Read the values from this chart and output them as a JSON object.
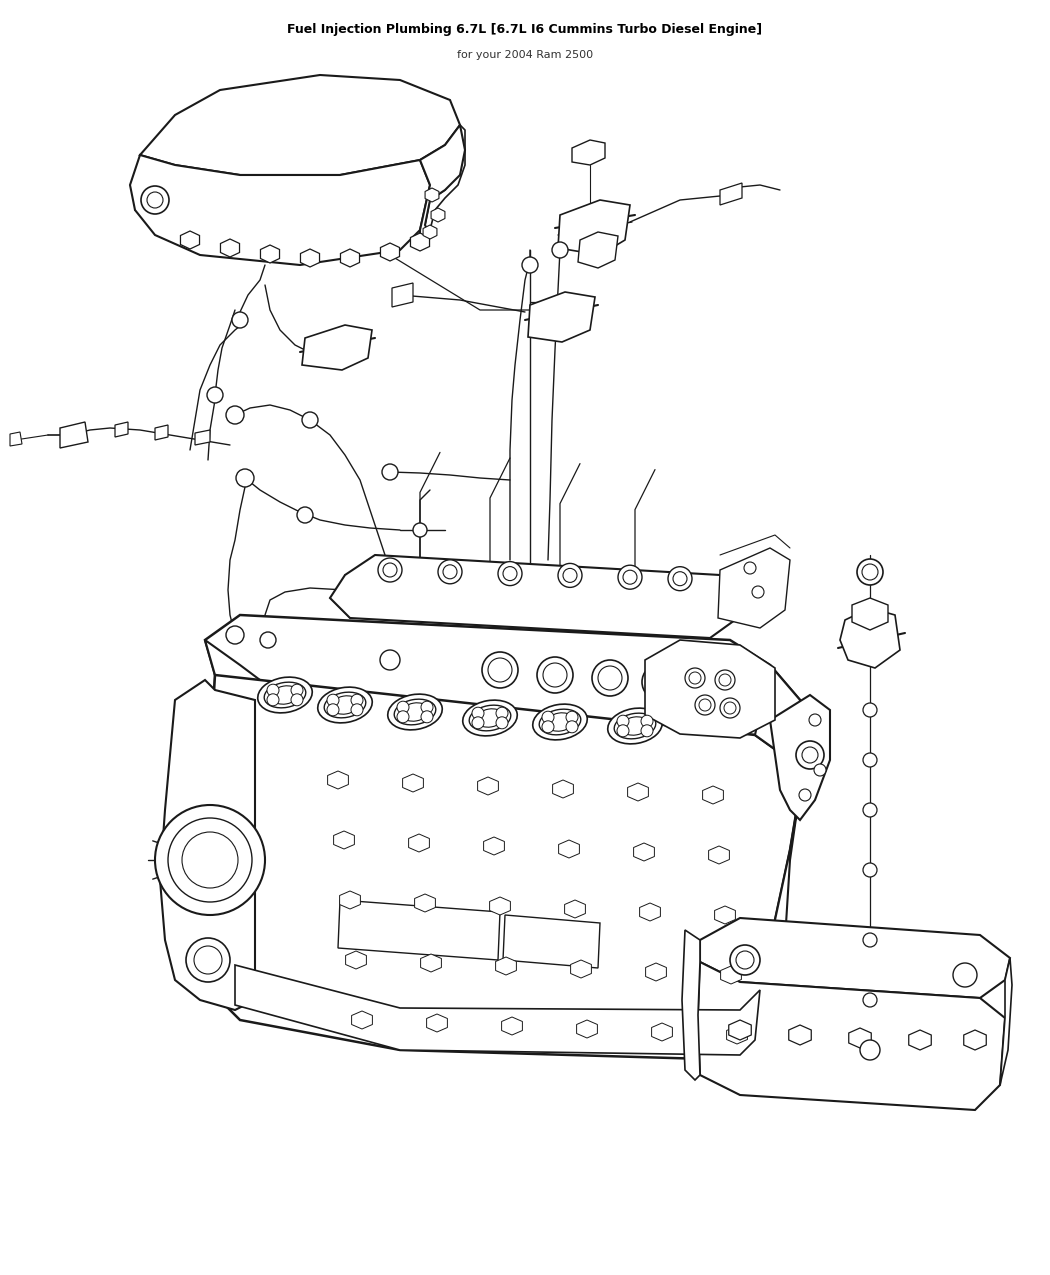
{
  "background_color": "#ffffff",
  "line_color": "#1a1a1a",
  "fig_width": 10.5,
  "fig_height": 12.75,
  "dpi": 100,
  "title": "Fuel Injection Plumbing 6.7L [6.7L I6 Cummins Turbo Diesel Engine]",
  "subtitle": "for your 2004 Ram 2500"
}
